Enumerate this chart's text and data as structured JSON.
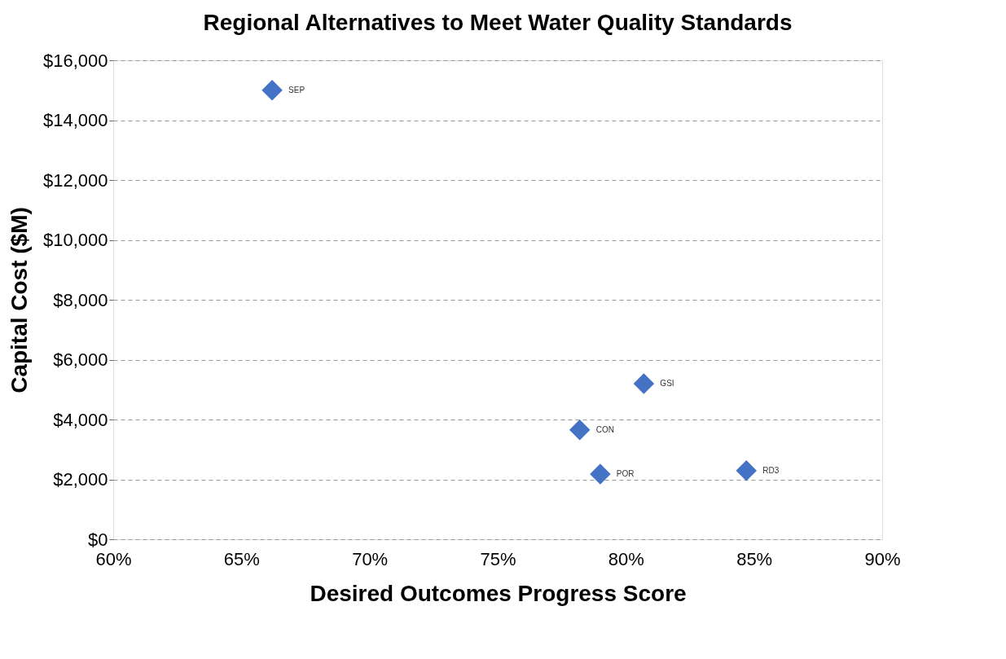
{
  "chart_data": {
    "type": "scatter",
    "title": "Regional Alternatives to Meet Water Quality Standards",
    "xlabel": "Desired Outcomes Progress Score",
    "ylabel": "Capital Cost ($M)",
    "x": [
      66.2,
      80.7,
      78.2,
      79.0,
      84.7
    ],
    "values": [
      15000,
      5200,
      3650,
      2180,
      2290
    ],
    "color": "#4472c4",
    "marker": "diamond",
    "grid": "y",
    "xlim": [
      60,
      90
    ],
    "ylim": [
      0,
      16000
    ],
    "xticks": [
      {
        "value": 60,
        "label": "60%"
      },
      {
        "value": 65,
        "label": "65%"
      },
      {
        "value": 70,
        "label": "70%"
      },
      {
        "value": 75,
        "label": "75%"
      },
      {
        "value": 80,
        "label": "80%"
      },
      {
        "value": 85,
        "label": "85%"
      },
      {
        "value": 90,
        "label": "90%"
      }
    ],
    "yticks": [
      {
        "value": 0,
        "label": "$0"
      },
      {
        "value": 2000,
        "label": "$2,000"
      },
      {
        "value": 4000,
        "label": "$4,000"
      },
      {
        "value": 6000,
        "label": "$6,000"
      },
      {
        "value": 8000,
        "label": "$8,000"
      },
      {
        "value": 10000,
        "label": "$10,000"
      },
      {
        "value": 12000,
        "label": "$12,000"
      },
      {
        "value": 14000,
        "label": "$14,000"
      },
      {
        "value": 16000,
        "label": "$16,000"
      }
    ],
    "annotations": [
      {
        "text": "SEP",
        "x": 66.2,
        "y": 15000
      },
      {
        "text": "GSI",
        "x": 80.7,
        "y": 5200
      },
      {
        "text": "CON",
        "x": 78.2,
        "y": 3650
      },
      {
        "text": "POR",
        "x": 79.0,
        "y": 2180
      },
      {
        "text": "RD3",
        "x": 84.7,
        "y": 2290
      }
    ]
  }
}
